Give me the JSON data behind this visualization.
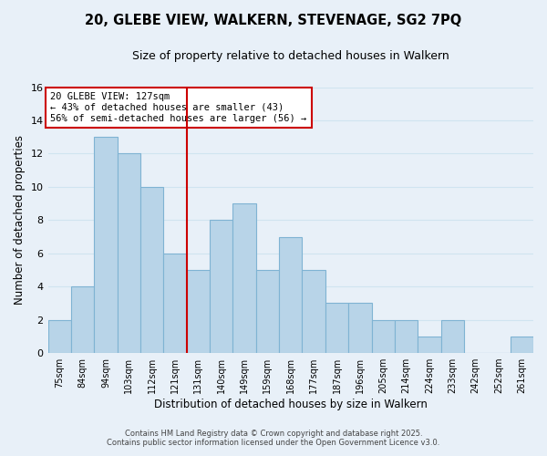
{
  "title": "20, GLEBE VIEW, WALKERN, STEVENAGE, SG2 7PQ",
  "subtitle": "Size of property relative to detached houses in Walkern",
  "xlabel": "Distribution of detached houses by size in Walkern",
  "ylabel": "Number of detached properties",
  "bar_labels": [
    "75sqm",
    "84sqm",
    "94sqm",
    "103sqm",
    "112sqm",
    "121sqm",
    "131sqm",
    "140sqm",
    "149sqm",
    "159sqm",
    "168sqm",
    "177sqm",
    "187sqm",
    "196sqm",
    "205sqm",
    "214sqm",
    "224sqm",
    "233sqm",
    "242sqm",
    "252sqm",
    "261sqm"
  ],
  "bar_values": [
    2,
    4,
    13,
    12,
    10,
    6,
    5,
    8,
    9,
    5,
    7,
    5,
    3,
    3,
    2,
    2,
    1,
    2,
    0,
    0,
    1
  ],
  "bar_color": "#b8d4e8",
  "bar_edge_color": "#7fb3d3",
  "grid_color": "#d0e4f0",
  "background_color": "#e8f0f8",
  "plot_bg_color": "#e8f0f8",
  "vline_x_index": 5.5,
  "vline_color": "#cc0000",
  "annotation_text": "20 GLEBE VIEW: 127sqm\n← 43% of detached houses are smaller (43)\n56% of semi-detached houses are larger (56) →",
  "annotation_box_color": "#ffffff",
  "annotation_box_edge": "#cc0000",
  "ylim": [
    0,
    16
  ],
  "yticks": [
    0,
    2,
    4,
    6,
    8,
    10,
    12,
    14,
    16
  ],
  "footer1": "Contains HM Land Registry data © Crown copyright and database right 2025.",
  "footer2": "Contains public sector information licensed under the Open Government Licence v3.0."
}
